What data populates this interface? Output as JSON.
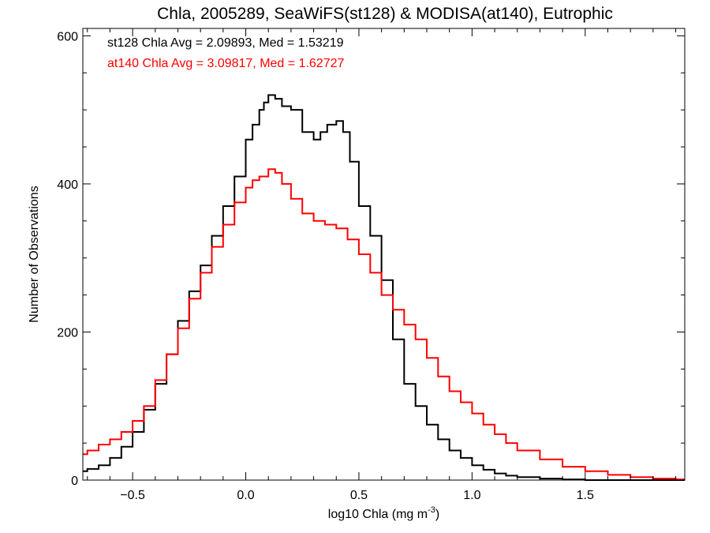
{
  "chart_data": {
    "type": "line",
    "step": true,
    "title": "Chla, 2005289, SeaWiFS(st128) & MODISA(at140), Eutrophic",
    "xlabel": "log10 Chla (mg m",
    "xlabel_superscript": "-3",
    "xlabel_suffix": ")",
    "ylabel": "Number of Observations",
    "xlim": [
      -0.72,
      1.94
    ],
    "ylim": [
      0,
      610
    ],
    "x_major_ticks": [
      -0.5,
      0.0,
      0.5,
      1.0,
      1.5
    ],
    "x_tick_labels": [
      "−0.5",
      "0.0",
      "0.5",
      "1.0",
      "1.5"
    ],
    "y_major_ticks": [
      0,
      200,
      400,
      600
    ],
    "y_tick_labels": [
      "0",
      "200",
      "400",
      "600"
    ],
    "grid": false,
    "annotations": [
      {
        "text": "st128 Chla Avg = 2.09893, Med = 1.53219",
        "color": "#000000"
      },
      {
        "text": "at140 Chla Avg = 3.09817, Med = 1.62727",
        "color": "#ff0000"
      }
    ],
    "series": [
      {
        "color": "#000000",
        "x": [
          -0.72,
          -0.7,
          -0.65,
          -0.6,
          -0.55,
          -0.5,
          -0.45,
          -0.4,
          -0.35,
          -0.3,
          -0.25,
          -0.2,
          -0.15,
          -0.1,
          -0.05,
          0.0,
          0.03,
          0.06,
          0.08,
          0.1,
          0.13,
          0.16,
          0.2,
          0.25,
          0.3,
          0.33,
          0.36,
          0.4,
          0.43,
          0.46,
          0.5,
          0.55,
          0.6,
          0.65,
          0.7,
          0.75,
          0.8,
          0.85,
          0.9,
          0.95,
          1.0,
          1.05,
          1.1,
          1.15,
          1.2,
          1.3,
          1.4,
          1.5,
          1.6,
          1.7
        ],
        "y": [
          12,
          15,
          20,
          30,
          45,
          65,
          95,
          130,
          170,
          215,
          255,
          290,
          330,
          370,
          410,
          460,
          480,
          500,
          510,
          520,
          515,
          505,
          500,
          470,
          460,
          470,
          480,
          485,
          470,
          430,
          370,
          330,
          270,
          190,
          130,
          100,
          75,
          55,
          40,
          30,
          20,
          14,
          9,
          6,
          4,
          2,
          1,
          0,
          0,
          0
        ]
      },
      {
        "color": "#ff0000",
        "x": [
          -0.72,
          -0.7,
          -0.65,
          -0.6,
          -0.55,
          -0.5,
          -0.45,
          -0.4,
          -0.35,
          -0.3,
          -0.25,
          -0.2,
          -0.15,
          -0.1,
          -0.05,
          0.0,
          0.03,
          0.06,
          0.1,
          0.13,
          0.16,
          0.2,
          0.25,
          0.3,
          0.35,
          0.4,
          0.45,
          0.5,
          0.55,
          0.6,
          0.65,
          0.7,
          0.75,
          0.8,
          0.85,
          0.9,
          0.95,
          1.0,
          1.05,
          1.1,
          1.15,
          1.2,
          1.3,
          1.4,
          1.5,
          1.6,
          1.7,
          1.8,
          1.9
        ],
        "y": [
          35,
          40,
          48,
          55,
          65,
          80,
          100,
          135,
          170,
          205,
          245,
          280,
          315,
          345,
          375,
          395,
          405,
          410,
          420,
          415,
          400,
          380,
          360,
          350,
          345,
          340,
          325,
          305,
          280,
          250,
          230,
          210,
          190,
          165,
          140,
          120,
          105,
          90,
          75,
          62,
          50,
          40,
          28,
          18,
          12,
          7,
          4,
          2,
          1
        ]
      }
    ]
  }
}
